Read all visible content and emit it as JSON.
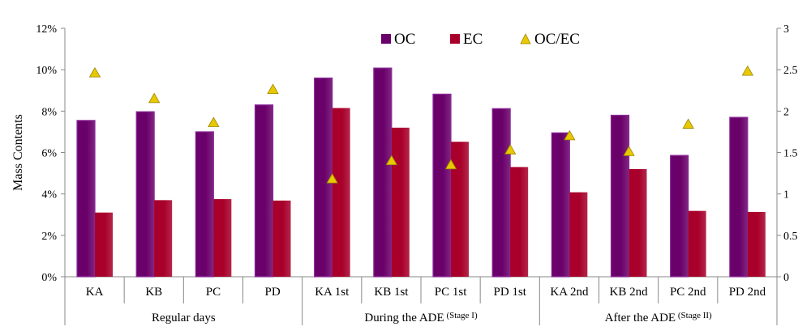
{
  "chart_data": {
    "type": "bar",
    "categories": [
      "KA",
      "KB",
      "PC",
      "PD",
      "KA 1st",
      "KB 1st",
      "PC 1st",
      "PD 1st",
      "KA 2nd",
      "KB 2nd",
      "PC 2nd",
      "PD 2nd"
    ],
    "groups": [
      {
        "label": "Regular days",
        "sub": "",
        "span": [
          0,
          3
        ]
      },
      {
        "label": "During the ADE",
        "sub": "(Stage I)",
        "span": [
          4,
          7
        ]
      },
      {
        "label": "After the ADE",
        "sub": "(Stage II)",
        "span": [
          8,
          11
        ]
      }
    ],
    "series": [
      {
        "name": "OC",
        "axis": "left",
        "mark": "bar",
        "color": "#6a006a",
        "values": [
          0.0755,
          0.0797,
          0.07,
          0.083,
          0.096,
          0.1008,
          0.0882,
          0.0812,
          0.0695,
          0.078,
          0.0586,
          0.077
        ]
      },
      {
        "name": "EC",
        "axis": "left",
        "mark": "bar",
        "color": "#a8002a",
        "values": [
          0.031,
          0.037,
          0.0375,
          0.0368,
          0.0815,
          0.072,
          0.0652,
          0.053,
          0.0408,
          0.052,
          0.0318,
          0.0313
        ]
      },
      {
        "name": "OC/EC",
        "axis": "right",
        "mark": "triangle",
        "color": "#e8c800",
        "values": [
          2.46,
          2.15,
          1.86,
          2.26,
          1.18,
          1.4,
          1.35,
          1.53,
          1.7,
          1.51,
          1.84,
          2.48
        ]
      }
    ],
    "ylabel": "Mass Contents",
    "y_left": {
      "lim": [
        0,
        0.12
      ],
      "ticks": [
        0,
        0.02,
        0.04,
        0.06,
        0.08,
        0.1,
        0.12
      ],
      "tick_labels": [
        "0%",
        "2%",
        "4%",
        "6%",
        "8%",
        "10%",
        "12%"
      ]
    },
    "y_right": {
      "lim": [
        0,
        3
      ],
      "ticks": [
        0,
        0.5,
        1,
        1.5,
        2,
        2.5,
        3
      ],
      "tick_labels": [
        "0",
        "0.5",
        "1",
        "1.5",
        "2",
        "2.5",
        "3"
      ]
    },
    "legend": {
      "position": "top-center",
      "entries": [
        "OC",
        "EC",
        "OC/EC"
      ]
    },
    "grid": false
  }
}
